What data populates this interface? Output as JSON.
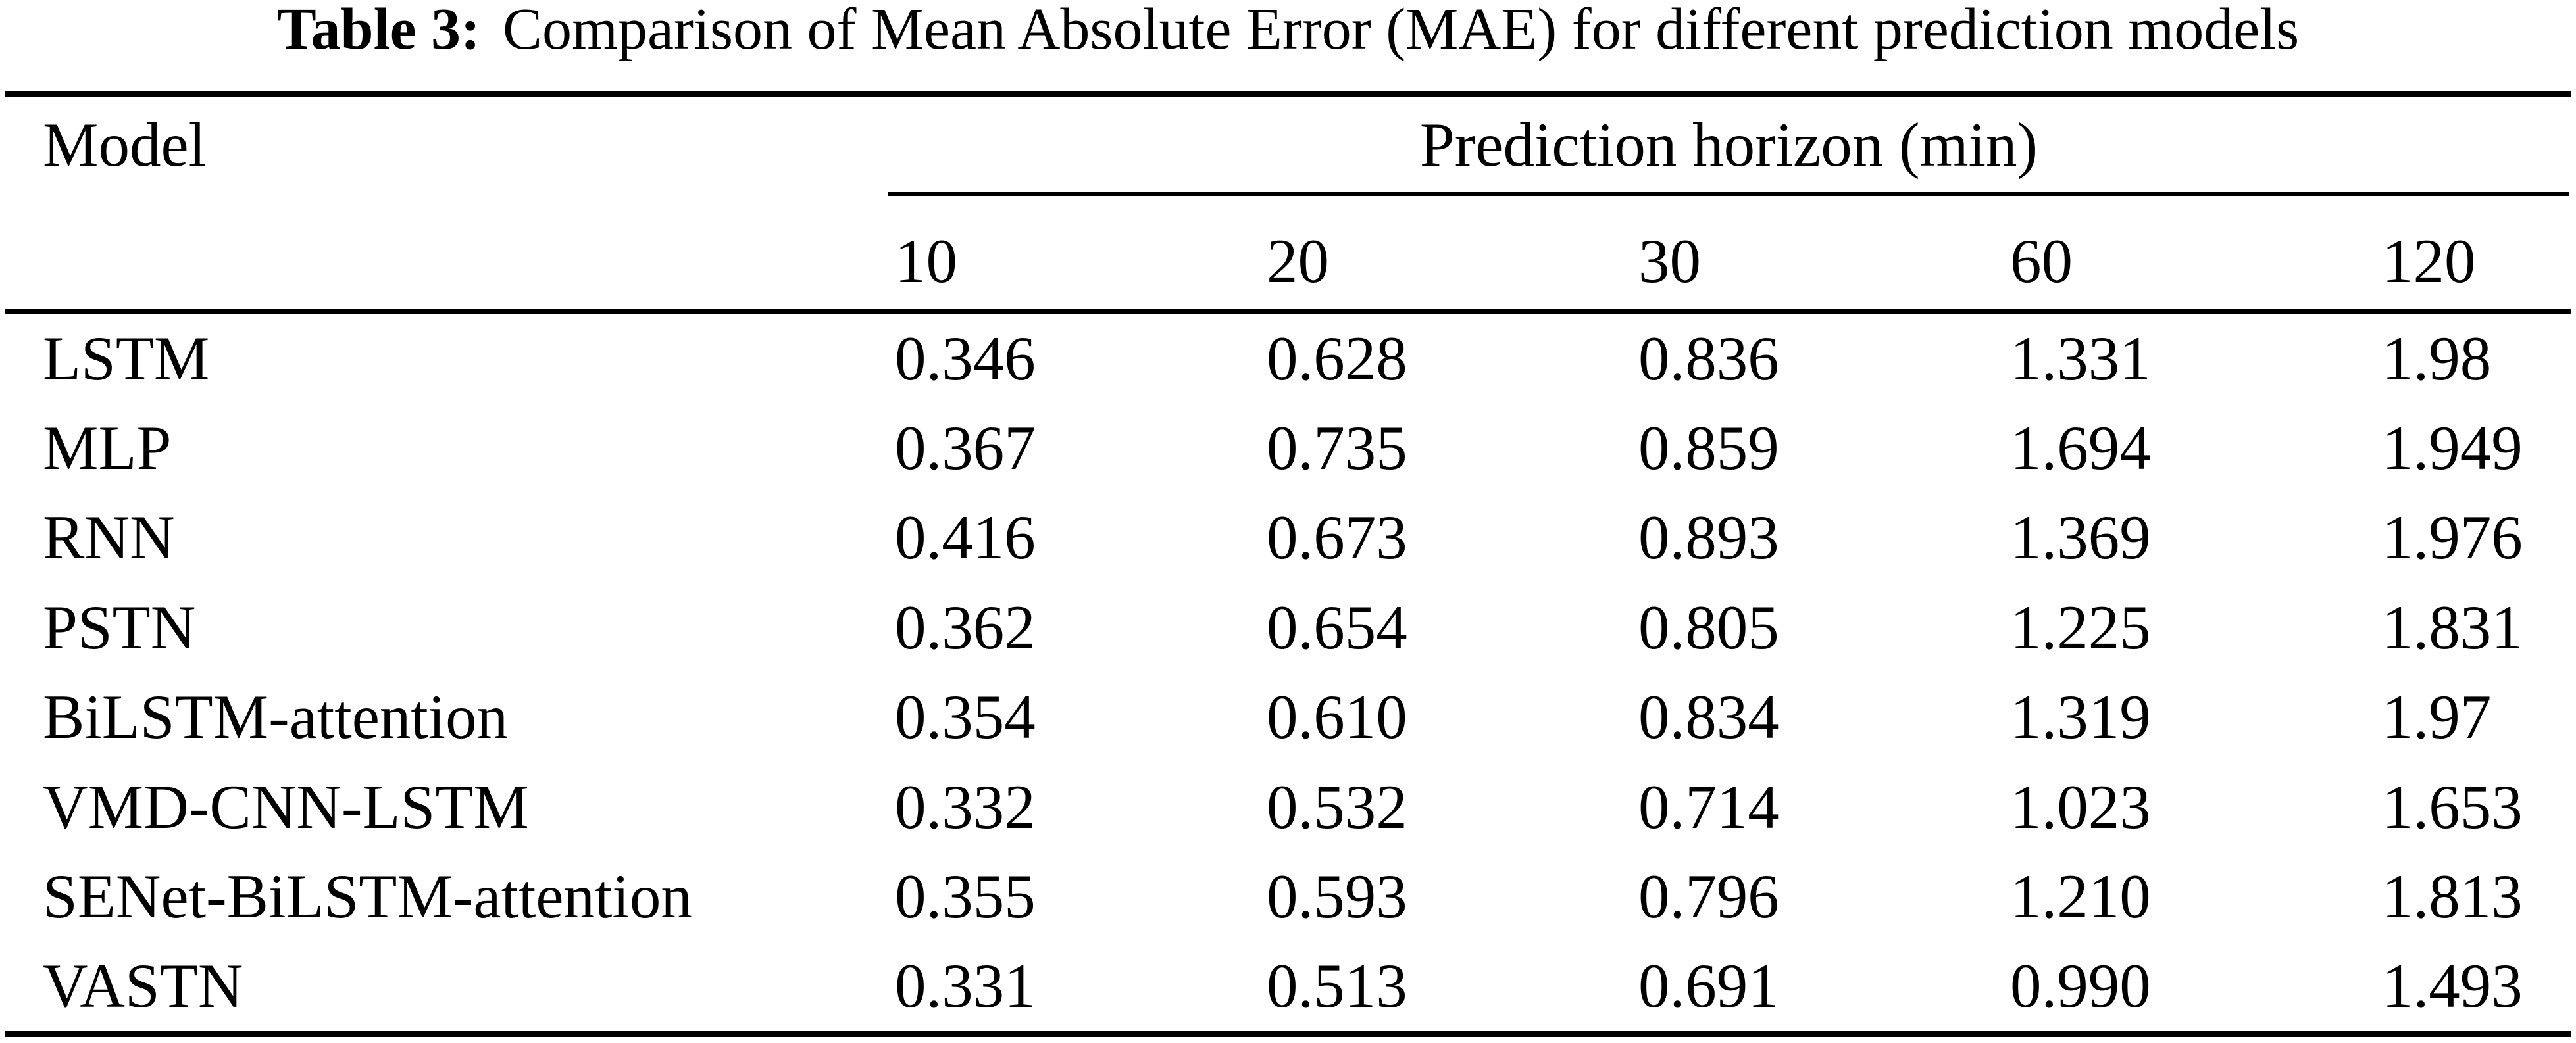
{
  "colors": {
    "ink": "#000000",
    "paper": "#ffffff"
  },
  "title": {
    "label": "Table 3:",
    "text": "Comparison of Mean Absolute Error (MAE) for different prediction models"
  },
  "table": {
    "model_header": "Model",
    "span_header": "Prediction horizon (min)",
    "horizons": [
      "10",
      "20",
      "30",
      "60",
      "120"
    ],
    "rows": [
      {
        "model": "LSTM",
        "values": [
          "0.346",
          "0.628",
          "0.836",
          "1.331",
          "1.98"
        ]
      },
      {
        "model": "MLP",
        "values": [
          "0.367",
          "0.735",
          "0.859",
          "1.694",
          "1.949"
        ]
      },
      {
        "model": "RNN",
        "values": [
          "0.416",
          "0.673",
          "0.893",
          "1.369",
          "1.976"
        ]
      },
      {
        "model": "PSTN",
        "values": [
          "0.362",
          "0.654",
          "0.805",
          "1.225",
          "1.831"
        ]
      },
      {
        "model": "BiLSTM-attention",
        "values": [
          "0.354",
          "0.610",
          "0.834",
          "1.319",
          "1.97"
        ]
      },
      {
        "model": "VMD-CNN-LSTM",
        "values": [
          "0.332",
          "0.532",
          "0.714",
          "1.023",
          "1.653"
        ]
      },
      {
        "model": "SENet-BiLSTM-attention",
        "values": [
          "0.355",
          "0.593",
          "0.796",
          "1.210",
          "1.813"
        ]
      },
      {
        "model": "VASTN",
        "values": [
          "0.331",
          "0.513",
          "0.691",
          "0.990",
          "1.493"
        ]
      }
    ]
  }
}
